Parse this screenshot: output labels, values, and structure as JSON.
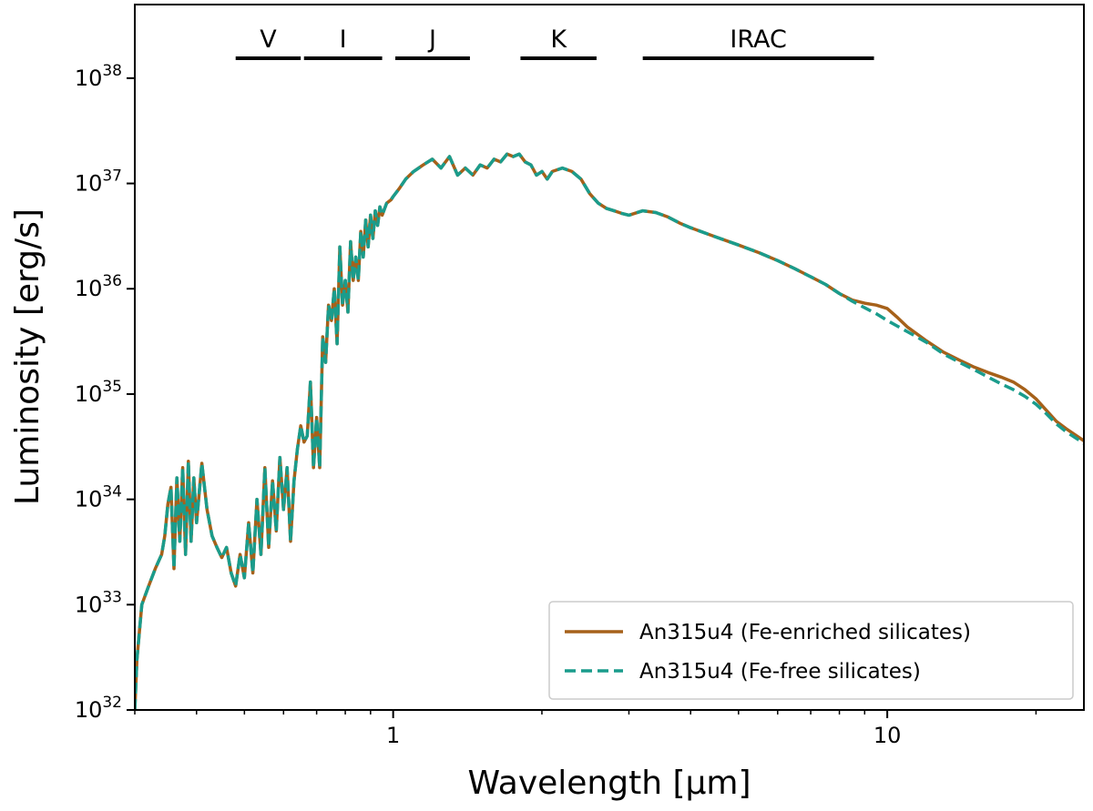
{
  "chart_data": {
    "type": "line",
    "title": "",
    "xlabel": "Wavelength [μm]",
    "ylabel": "Luminosity [erg/s]",
    "xscale": "log",
    "yscale": "log",
    "xlim": [
      0.3,
      25
    ],
    "ylim": [
      1e+32,
      5e+38
    ],
    "x_ticks": [
      {
        "value": 1,
        "label": "1"
      },
      {
        "value": 10,
        "label": "10"
      }
    ],
    "y_ticks": [
      {
        "value": 1e+32,
        "base": "10",
        "exp": "32"
      },
      {
        "value": 1e+33,
        "base": "10",
        "exp": "33"
      },
      {
        "value": 1e+34,
        "base": "10",
        "exp": "34"
      },
      {
        "value": 1e+35,
        "base": "10",
        "exp": "35"
      },
      {
        "value": 1e+36,
        "base": "10",
        "exp": "36"
      },
      {
        "value": 1e+37,
        "base": "10",
        "exp": "37"
      },
      {
        "value": 1e+38,
        "base": "10",
        "exp": "38"
      }
    ],
    "grid": false,
    "legend_position": "lower-right",
    "bands": [
      {
        "label": "V",
        "x_start": 0.48,
        "x_end": 0.65
      },
      {
        "label": "I",
        "x_start": 0.66,
        "x_end": 0.95
      },
      {
        "label": "J",
        "x_start": 1.01,
        "x_end": 1.43
      },
      {
        "label": "K",
        "x_start": 1.81,
        "x_end": 2.58
      },
      {
        "label": "IRAC",
        "x_start": 3.2,
        "x_end": 9.4
      }
    ],
    "series": [
      {
        "name": "An315u4 (Fe-enriched silicates)",
        "color": "#a6611a",
        "style": "solid",
        "x": [
          0.3,
          0.303,
          0.31,
          0.32,
          0.33,
          0.34,
          0.345,
          0.35,
          0.355,
          0.36,
          0.365,
          0.37,
          0.375,
          0.38,
          0.385,
          0.39,
          0.395,
          0.4,
          0.41,
          0.42,
          0.43,
          0.44,
          0.45,
          0.46,
          0.47,
          0.48,
          0.49,
          0.5,
          0.51,
          0.52,
          0.53,
          0.54,
          0.55,
          0.56,
          0.57,
          0.58,
          0.59,
          0.6,
          0.61,
          0.62,
          0.63,
          0.64,
          0.65,
          0.66,
          0.67,
          0.68,
          0.69,
          0.7,
          0.71,
          0.72,
          0.73,
          0.74,
          0.75,
          0.76,
          0.77,
          0.78,
          0.79,
          0.8,
          0.81,
          0.82,
          0.83,
          0.84,
          0.85,
          0.86,
          0.87,
          0.88,
          0.89,
          0.9,
          0.91,
          0.92,
          0.93,
          0.94,
          0.95,
          0.97,
          0.99,
          1.0,
          1.03,
          1.06,
          1.1,
          1.15,
          1.2,
          1.25,
          1.3,
          1.35,
          1.4,
          1.45,
          1.5,
          1.55,
          1.6,
          1.65,
          1.7,
          1.75,
          1.8,
          1.85,
          1.9,
          1.95,
          2.0,
          2.05,
          2.1,
          2.2,
          2.3,
          2.4,
          2.5,
          2.6,
          2.7,
          2.8,
          2.9,
          3.0,
          3.2,
          3.4,
          3.6,
          3.8,
          4.0,
          4.5,
          5.0,
          5.5,
          6.0,
          6.5,
          7.0,
          7.5,
          8.0,
          8.5,
          9.0,
          9.5,
          10.0,
          10.5,
          11.0,
          12.0,
          13.0,
          14.0,
          15.0,
          16.0,
          17.0,
          18.0,
          19.0,
          20.0,
          21.0,
          22.0,
          23.0,
          25.0
        ],
        "y": [
          1e+32,
          3e+32,
          1e+33,
          1.5e+33,
          2.2e+33,
          3e+33,
          4.5e+33,
          9e+33,
          1.3e+34,
          2.2e+33,
          1.6e+34,
          4e+33,
          2e+34,
          3e+33,
          2.3e+34,
          4e+33,
          1.6e+34,
          6e+33,
          2.2e+34,
          8e+33,
          4.5e+33,
          3.5e+33,
          2.8e+33,
          3.5e+33,
          2e+33,
          1.5e+33,
          3e+33,
          1.8e+33,
          6e+33,
          2e+33,
          1e+34,
          3e+33,
          2e+34,
          3.5e+33,
          1.5e+34,
          5e+33,
          2.5e+34,
          8e+33,
          2e+34,
          4e+33,
          1.5e+34,
          3e+34,
          5e+34,
          3.5e+34,
          4e+34,
          1.3e+35,
          2e+34,
          6e+34,
          2e+34,
          3.5e+35,
          2e+35,
          7e+35,
          5e+35,
          1e+36,
          3e+35,
          2.5e+36,
          7e+35,
          1.2e+36,
          6e+35,
          2.8e+36,
          1.2e+36,
          2e+36,
          1.2e+36,
          3.5e+36,
          2e+36,
          4.5e+36,
          2.5e+36,
          5e+36,
          3e+36,
          5.5e+36,
          4e+36,
          6e+36,
          5e+36,
          6.5e+36,
          7e+36,
          7.5e+36,
          9e+36,
          1.1e+37,
          1.3e+37,
          1.5e+37,
          1.7e+37,
          1.4e+37,
          1.8e+37,
          1.2e+37,
          1.4e+37,
          1.2e+37,
          1.5e+37,
          1.4e+37,
          1.7e+37,
          1.6e+37,
          1.9e+37,
          1.8e+37,
          1.9e+37,
          1.6e+37,
          1.5e+37,
          1.2e+37,
          1.3e+37,
          1.1e+37,
          1.3e+37,
          1.4e+37,
          1.3e+37,
          1.1e+37,
          8e+36,
          6.5e+36,
          5.8e+36,
          5.5e+36,
          5.2e+36,
          5e+36,
          5.5e+36,
          5.3e+36,
          4.8e+36,
          4.2e+36,
          3.8e+36,
          3.1e+36,
          2.6e+36,
          2.2e+36,
          1.85e+36,
          1.55e+36,
          1.3e+36,
          1.1e+36,
          9e+35,
          7.8e+35,
          7.3e+35,
          7e+35,
          6.5e+35,
          5.3e+35,
          4.3e+35,
          3.2e+35,
          2.5e+35,
          2.1e+35,
          1.8e+35,
          1.6e+35,
          1.45e+35,
          1.3e+35,
          1.1e+35,
          9e+34,
          7e+34,
          5.5e+34,
          4.7e+34,
          3.6e+34
        ]
      },
      {
        "name": "An315u4 (Fe-free silicates)",
        "color": "#1a9c8c",
        "style": "dashed",
        "x": [
          0.3,
          0.303,
          0.31,
          0.32,
          0.33,
          0.34,
          0.345,
          0.35,
          0.355,
          0.36,
          0.365,
          0.37,
          0.375,
          0.38,
          0.385,
          0.39,
          0.395,
          0.4,
          0.41,
          0.42,
          0.43,
          0.44,
          0.45,
          0.46,
          0.47,
          0.48,
          0.49,
          0.5,
          0.51,
          0.52,
          0.53,
          0.54,
          0.55,
          0.56,
          0.57,
          0.58,
          0.59,
          0.6,
          0.61,
          0.62,
          0.63,
          0.64,
          0.65,
          0.66,
          0.67,
          0.68,
          0.69,
          0.7,
          0.71,
          0.72,
          0.73,
          0.74,
          0.75,
          0.76,
          0.77,
          0.78,
          0.79,
          0.8,
          0.81,
          0.82,
          0.83,
          0.84,
          0.85,
          0.86,
          0.87,
          0.88,
          0.89,
          0.9,
          0.91,
          0.92,
          0.93,
          0.94,
          0.95,
          0.97,
          0.99,
          1.0,
          1.03,
          1.06,
          1.1,
          1.15,
          1.2,
          1.25,
          1.3,
          1.35,
          1.4,
          1.45,
          1.5,
          1.55,
          1.6,
          1.65,
          1.7,
          1.75,
          1.8,
          1.85,
          1.9,
          1.95,
          2.0,
          2.05,
          2.1,
          2.2,
          2.3,
          2.4,
          2.5,
          2.6,
          2.7,
          2.8,
          2.9,
          3.0,
          3.2,
          3.4,
          3.6,
          3.8,
          4.0,
          4.5,
          5.0,
          5.5,
          6.0,
          6.5,
          7.0,
          7.5,
          8.0,
          8.5,
          9.0,
          9.5,
          10.0,
          10.5,
          11.0,
          12.0,
          13.0,
          14.0,
          15.0,
          16.0,
          17.0,
          18.0,
          19.0,
          20.0,
          21.0,
          22.0,
          23.0,
          25.0
        ],
        "y": [
          1e+32,
          3e+32,
          1e+33,
          1.5e+33,
          2.2e+33,
          3e+33,
          4.5e+33,
          9e+33,
          1.3e+34,
          2.2e+33,
          1.6e+34,
          4e+33,
          2e+34,
          3e+33,
          2.3e+34,
          4e+33,
          1.6e+34,
          6e+33,
          2.2e+34,
          8e+33,
          4.5e+33,
          3.5e+33,
          2.8e+33,
          3.5e+33,
          2e+33,
          1.5e+33,
          3e+33,
          1.8e+33,
          6e+33,
          2e+33,
          1e+34,
          3e+33,
          2e+34,
          3.5e+33,
          1.5e+34,
          5e+33,
          2.5e+34,
          8e+33,
          2e+34,
          4e+33,
          1.5e+34,
          3e+34,
          5e+34,
          3.5e+34,
          4e+34,
          1.3e+35,
          2e+34,
          6e+34,
          2e+34,
          3.5e+35,
          2e+35,
          7e+35,
          5e+35,
          1e+36,
          3e+35,
          2.5e+36,
          7e+35,
          1.2e+36,
          6e+35,
          2.8e+36,
          1.2e+36,
          2e+36,
          1.2e+36,
          3.5e+36,
          2e+36,
          4.5e+36,
          2.5e+36,
          5e+36,
          3e+36,
          5.5e+36,
          4e+36,
          6e+36,
          5e+36,
          6.5e+36,
          7e+36,
          7.5e+36,
          9e+36,
          1.1e+37,
          1.3e+37,
          1.5e+37,
          1.7e+37,
          1.4e+37,
          1.8e+37,
          1.2e+37,
          1.4e+37,
          1.2e+37,
          1.5e+37,
          1.4e+37,
          1.7e+37,
          1.6e+37,
          1.9e+37,
          1.8e+37,
          1.9e+37,
          1.6e+37,
          1.5e+37,
          1.2e+37,
          1.3e+37,
          1.1e+37,
          1.3e+37,
          1.4e+37,
          1.3e+37,
          1.1e+37,
          8e+36,
          6.5e+36,
          5.8e+36,
          5.5e+36,
          5.2e+36,
          5e+36,
          5.5e+36,
          5.3e+36,
          4.8e+36,
          4.2e+36,
          3.8e+36,
          3.1e+36,
          2.6e+36,
          2.2e+36,
          1.85e+36,
          1.55e+36,
          1.3e+36,
          1.1e+36,
          9e+35,
          7.6e+35,
          6.6e+35,
          5.8e+35,
          5e+35,
          4.4e+35,
          3.9e+35,
          3.1e+35,
          2.4e+35,
          2e+35,
          1.7e+35,
          1.45e+35,
          1.25e+35,
          1.1e+35,
          9.5e+34,
          8e+34,
          6.5e+34,
          5.2e+34,
          4.4e+34,
          3.4e+34
        ]
      }
    ]
  }
}
